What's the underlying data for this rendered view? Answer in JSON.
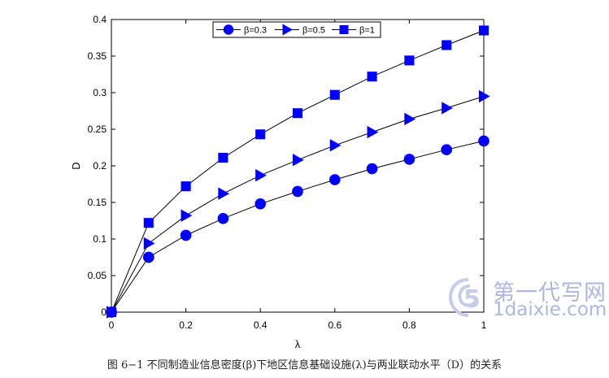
{
  "chart_data": {
    "type": "line",
    "x": [
      0,
      0.1,
      0.2,
      0.3,
      0.4,
      0.5,
      0.6,
      0.7,
      0.8,
      0.9,
      1
    ],
    "series": [
      {
        "name": "β=0.3",
        "marker": "circle",
        "color": "#0000ff",
        "values": [
          0,
          0.075,
          0.105,
          0.128,
          0.148,
          0.165,
          0.181,
          0.196,
          0.209,
          0.222,
          0.234
        ]
      },
      {
        "name": "β=0.5",
        "marker": "triangle-right",
        "color": "#0000ff",
        "values": [
          0,
          0.094,
          0.132,
          0.162,
          0.187,
          0.208,
          0.228,
          0.246,
          0.264,
          0.279,
          0.295
        ]
      },
      {
        "name": "β=1",
        "marker": "square",
        "color": "#0000ff",
        "values": [
          0,
          0.122,
          0.172,
          0.211,
          0.243,
          0.272,
          0.297,
          0.322,
          0.344,
          0.365,
          0.385
        ]
      }
    ],
    "xlabel": "λ",
    "ylabel": "D",
    "xlim": [
      0,
      1
    ],
    "ylim": [
      0,
      0.4
    ],
    "xticks": [
      0,
      0.2,
      0.4,
      0.6,
      0.8,
      1
    ],
    "xtick_labels": [
      "0",
      "0.2",
      "0.4",
      "0.6",
      "0.8",
      "1"
    ],
    "yticks": [
      0,
      0.05,
      0.1,
      0.15,
      0.2,
      0.25,
      0.3,
      0.35,
      0.4
    ],
    "ytick_labels": [
      "0",
      "0.05",
      "0.1",
      "0.15",
      "0.2",
      "0.25",
      "0.3",
      "0.35",
      "0.4"
    ],
    "legend_position": "top-center",
    "grid": false,
    "line_color": "#000000"
  },
  "caption": "图 6−1  不同制造业信息密度(β)下地区信息基础设施(λ)与两业联动水平（D）的关系",
  "watermark": {
    "line1": "第一代写网",
    "line2": "1daixie.com",
    "color": "#9aa6d8"
  }
}
